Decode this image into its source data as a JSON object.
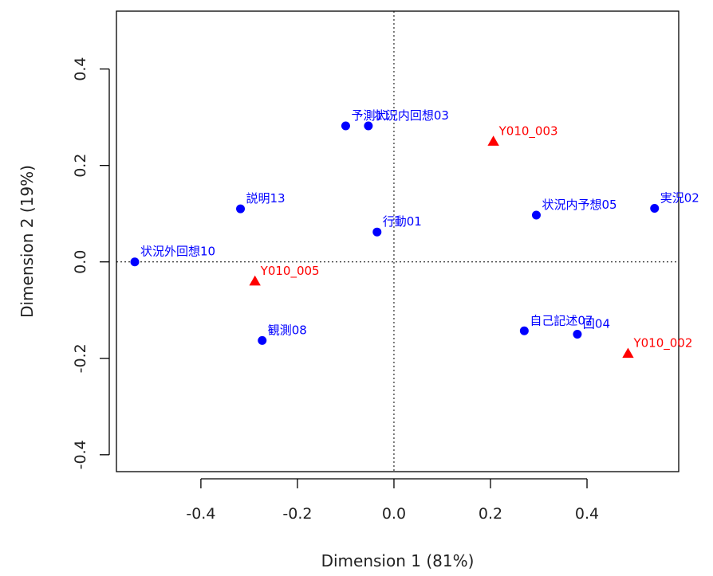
{
  "chart_data": {
    "type": "scatter",
    "xlabel": "Dimension 1 (81%)",
    "ylabel": "Dimension 2 (19%)",
    "xlim": [
      -0.575,
      0.59
    ],
    "ylim": [
      -0.435,
      0.52
    ],
    "xticks": [
      -0.4,
      -0.2,
      0.0,
      0.2,
      0.4
    ],
    "yticks": [
      -0.4,
      -0.2,
      0.0,
      0.2,
      0.4
    ],
    "tick_labels_x": [
      "-0.4",
      "-0.2",
      "0.0",
      "0.2",
      "0.4"
    ],
    "tick_labels_y": [
      "-0.4",
      "-0.2",
      "0.0",
      "0.2",
      "0.4"
    ],
    "reference_lines": {
      "x": 0,
      "y": 0,
      "style": "dotted"
    },
    "colors": {
      "blue_points": "#0000ff",
      "red_points": "#ff0000"
    },
    "series": [
      {
        "marker": "circle",
        "color": "#0000ff",
        "points": [
          {
            "label": "予測11",
            "x": -0.1,
            "y": 0.282
          },
          {
            "label": "状況内回想03",
            "x": -0.053,
            "y": 0.282
          },
          {
            "label": "説明13",
            "x": -0.318,
            "y": 0.11
          },
          {
            "label": "行動01",
            "x": -0.035,
            "y": 0.062
          },
          {
            "label": "状況外回想10",
            "x": -0.537,
            "y": 0.0
          },
          {
            "label": "観測08",
            "x": -0.273,
            "y": -0.163
          },
          {
            "label": "状況内予想05",
            "x": 0.295,
            "y": 0.097
          },
          {
            "label": "実況02",
            "x": 0.54,
            "y": 0.111
          },
          {
            "label": "自己記述07",
            "x": 0.27,
            "y": -0.143
          },
          {
            "label": "回04",
            "x": 0.38,
            "y": -0.15
          }
        ]
      },
      {
        "marker": "triangle",
        "color": "#ff0000",
        "points": [
          {
            "label": "Y010_003",
            "x": 0.206,
            "y": 0.25
          },
          {
            "label": "Y010_005",
            "x": -0.288,
            "y": -0.04
          },
          {
            "label": "Y010_002",
            "x": 0.485,
            "y": -0.19
          }
        ]
      }
    ]
  }
}
